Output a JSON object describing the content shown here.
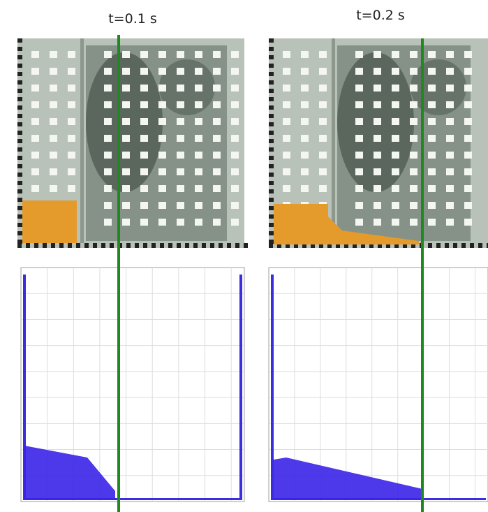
{
  "panels": [
    {
      "time_label": "t=0.1 s"
    },
    {
      "time_label": "t=0.2 s"
    }
  ]
}
